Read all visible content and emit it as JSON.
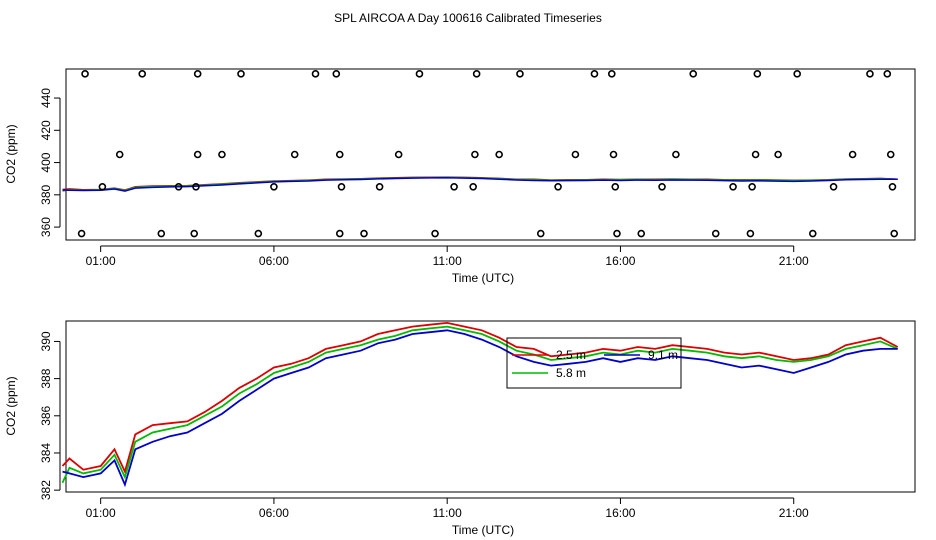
{
  "title": "SPL AIRCOA A  Day 100616  Calibrated Timeseries",
  "chart_data": [
    {
      "type": "scatter",
      "xlabel": "Time (UTC)",
      "ylabel": "CO2 (ppm)",
      "x_unit": "hours UTC",
      "xlim": [
        0,
        24.5
      ],
      "ylim": [
        352,
        458
      ],
      "xticks": [
        1,
        6,
        11,
        16,
        21
      ],
      "xtick_labels": [
        "01:00",
        "06:00",
        "11:00",
        "16:00",
        "21:00"
      ],
      "yticks": [
        360,
        380,
        400,
        420,
        440
      ],
      "grid": false,
      "calibration_points": [
        [
          0.45,
          356
        ],
        [
          0.55,
          455
        ],
        [
          1.05,
          385
        ],
        [
          1.55,
          405
        ],
        [
          2.2,
          455
        ],
        [
          2.75,
          356
        ],
        [
          3.25,
          385
        ],
        [
          3.7,
          356
        ],
        [
          3.8,
          405
        ],
        [
          3.8,
          455
        ],
        [
          3.75,
          385
        ],
        [
          4.5,
          405
        ],
        [
          5.05,
          455
        ],
        [
          5.55,
          356
        ],
        [
          6.0,
          385
        ],
        [
          6.6,
          405
        ],
        [
          7.2,
          455
        ],
        [
          7.8,
          455
        ],
        [
          7.9,
          405
        ],
        [
          7.95,
          385
        ],
        [
          7.9,
          356
        ],
        [
          8.6,
          356
        ],
        [
          9.05,
          385
        ],
        [
          9.6,
          405
        ],
        [
          10.2,
          455
        ],
        [
          10.65,
          356
        ],
        [
          11.2,
          385
        ],
        [
          11.75,
          385
        ],
        [
          11.8,
          405
        ],
        [
          11.85,
          455
        ],
        [
          12.5,
          405
        ],
        [
          13.1,
          455
        ],
        [
          13.7,
          356
        ],
        [
          14.2,
          385
        ],
        [
          14.7,
          405
        ],
        [
          15.25,
          455
        ],
        [
          15.75,
          455
        ],
        [
          15.8,
          405
        ],
        [
          15.85,
          385
        ],
        [
          15.9,
          356
        ],
        [
          16.6,
          356
        ],
        [
          17.2,
          385
        ],
        [
          17.6,
          405
        ],
        [
          18.1,
          455
        ],
        [
          18.75,
          356
        ],
        [
          19.25,
          385
        ],
        [
          19.75,
          356
        ],
        [
          19.8,
          385
        ],
        [
          19.9,
          405
        ],
        [
          19.95,
          455
        ],
        [
          20.55,
          405
        ],
        [
          21.1,
          455
        ],
        [
          21.55,
          356
        ],
        [
          22.15,
          385
        ],
        [
          22.7,
          405
        ],
        [
          23.2,
          455
        ],
        [
          23.7,
          455
        ],
        [
          23.8,
          405
        ],
        [
          23.85,
          385
        ],
        [
          23.9,
          356
        ]
      ],
      "series": [
        {
          "name": "",
          "color": "#dd0000"
        },
        {
          "name": "",
          "color": "#00bb00"
        },
        {
          "name": "",
          "color": "#0000cc"
        }
      ]
    },
    {
      "type": "line",
      "xlabel": "Time (UTC)",
      "ylabel": "CO2 (ppm)",
      "x_unit": "hours UTC",
      "xlim": [
        0,
        24.5
      ],
      "ylim": [
        381.9,
        391.1
      ],
      "xticks": [
        1,
        6,
        11,
        16,
        21
      ],
      "xtick_labels": [
        "01:00",
        "06:00",
        "11:00",
        "16:00",
        "21:00"
      ],
      "yticks": [
        382,
        384,
        386,
        388,
        390
      ],
      "grid": false,
      "legend": {
        "placement": "top-center-right",
        "entries": [
          {
            "label": "2.5 m",
            "color": "#dd0000"
          },
          {
            "label": "9.1 m",
            "color": "#0000cc"
          },
          {
            "label": "5.8 m",
            "color": "#00bb00"
          }
        ]
      },
      "series": [
        {
          "name": "2.5 m",
          "color": "#dd0000",
          "x": [
            -0.1,
            0.1,
            0.5,
            1.0,
            1.4,
            1.7,
            2.0,
            2.5,
            3.0,
            3.5,
            4.0,
            4.5,
            5.0,
            5.5,
            6.0,
            6.5,
            7.0,
            7.5,
            8.0,
            8.5,
            9.0,
            9.5,
            10.0,
            10.5,
            11.0,
            11.5,
            12.0,
            12.5,
            13.0,
            13.5,
            14.0,
            14.5,
            15.0,
            15.5,
            16.0,
            16.5,
            17.0,
            17.5,
            18.0,
            18.5,
            19.0,
            19.5,
            20.0,
            20.5,
            21.0,
            21.5,
            22.0,
            22.5,
            23.0,
            23.5,
            24.0
          ],
          "values": [
            383.3,
            383.7,
            383.1,
            383.3,
            384.2,
            383.0,
            385.0,
            385.5,
            385.6,
            385.7,
            386.2,
            386.8,
            387.5,
            388.0,
            388.6,
            388.8,
            389.1,
            389.6,
            389.8,
            390.0,
            390.4,
            390.6,
            390.8,
            390.9,
            391.0,
            390.8,
            390.6,
            390.2,
            389.7,
            389.6,
            389.2,
            389.3,
            389.4,
            389.6,
            389.5,
            389.7,
            389.6,
            389.8,
            389.7,
            389.6,
            389.4,
            389.3,
            389.4,
            389.2,
            389.0,
            389.1,
            389.3,
            389.8,
            390.0,
            390.2,
            389.7
          ]
        },
        {
          "name": "5.8 m",
          "color": "#00bb00",
          "x": [
            -0.1,
            0.1,
            0.5,
            1.0,
            1.4,
            1.7,
            2.0,
            2.5,
            3.0,
            3.5,
            4.0,
            4.5,
            5.0,
            5.5,
            6.0,
            6.5,
            7.0,
            7.5,
            8.0,
            8.5,
            9.0,
            9.5,
            10.0,
            10.5,
            11.0,
            11.5,
            12.0,
            12.5,
            13.0,
            13.5,
            14.0,
            14.5,
            15.0,
            15.5,
            16.0,
            16.5,
            17.0,
            17.5,
            18.0,
            18.5,
            19.0,
            19.5,
            20.0,
            20.5,
            21.0,
            21.5,
            22.0,
            22.5,
            23.0,
            23.5,
            24.0
          ],
          "values": [
            382.4,
            383.2,
            382.9,
            383.1,
            383.9,
            382.7,
            384.6,
            385.1,
            385.3,
            385.5,
            386.0,
            386.5,
            387.2,
            387.7,
            388.3,
            388.6,
            388.9,
            389.4,
            389.6,
            389.8,
            390.1,
            390.3,
            390.6,
            390.7,
            390.8,
            390.6,
            390.4,
            390.0,
            389.5,
            389.3,
            389.0,
            389.1,
            389.2,
            389.4,
            389.3,
            389.5,
            389.4,
            389.6,
            389.5,
            389.4,
            389.2,
            389.1,
            389.2,
            389.0,
            388.9,
            389.0,
            389.2,
            389.6,
            389.8,
            390.0,
            389.6
          ]
        },
        {
          "name": "9.1 m",
          "color": "#0000cc",
          "x": [
            -0.1,
            0.1,
            0.5,
            1.0,
            1.4,
            1.7,
            2.0,
            2.5,
            3.0,
            3.5,
            4.0,
            4.5,
            5.0,
            5.5,
            6.0,
            6.5,
            7.0,
            7.5,
            8.0,
            8.5,
            9.0,
            9.5,
            10.0,
            10.5,
            11.0,
            11.5,
            12.0,
            12.5,
            13.0,
            13.5,
            14.0,
            14.5,
            15.0,
            15.5,
            16.0,
            16.5,
            17.0,
            17.5,
            18.0,
            18.5,
            19.0,
            19.5,
            20.0,
            20.5,
            21.0,
            21.5,
            22.0,
            22.5,
            23.0,
            23.5,
            24.0
          ],
          "values": [
            383.0,
            382.9,
            382.7,
            382.9,
            383.6,
            382.3,
            384.2,
            384.6,
            384.9,
            385.1,
            385.6,
            386.1,
            386.8,
            387.4,
            388.0,
            388.3,
            388.6,
            389.1,
            389.3,
            389.5,
            389.9,
            390.1,
            390.4,
            390.5,
            390.6,
            390.4,
            390.1,
            389.7,
            389.2,
            388.9,
            388.7,
            388.8,
            388.9,
            389.1,
            388.9,
            389.1,
            389.0,
            389.2,
            389.1,
            389.0,
            388.8,
            388.6,
            388.7,
            388.5,
            388.3,
            388.6,
            388.9,
            389.3,
            389.5,
            389.6,
            389.6
          ]
        }
      ]
    }
  ]
}
